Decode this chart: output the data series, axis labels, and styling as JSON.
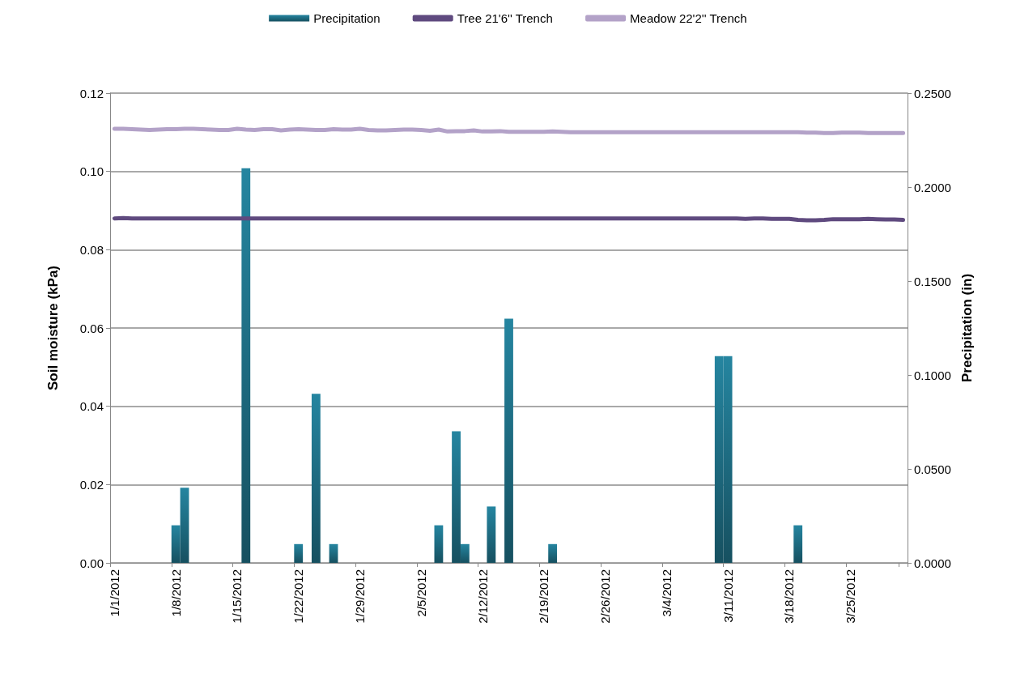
{
  "chart_data": {
    "type": "bar",
    "ylabel": "Soil moisture (kPa)",
    "y2label": "Precipitation (in)",
    "categories": [
      "1/1/2012",
      null,
      null,
      null,
      null,
      null,
      null,
      "1/8/2012",
      null,
      null,
      null,
      null,
      null,
      null,
      "1/15/2012",
      null,
      null,
      null,
      null,
      null,
      null,
      "1/22/2012",
      null,
      null,
      null,
      null,
      null,
      null,
      "1/29/2012",
      null,
      null,
      null,
      null,
      null,
      null,
      "2/5/2012",
      null,
      null,
      null,
      null,
      null,
      null,
      "2/12/2012",
      null,
      null,
      null,
      null,
      null,
      null,
      "2/19/2012",
      null,
      null,
      null,
      null,
      null,
      null,
      "2/26/2012",
      null,
      null,
      null,
      null,
      null,
      null,
      "3/4/2012",
      null,
      null,
      null,
      null,
      null,
      null,
      "3/11/2012",
      null,
      null,
      null,
      null,
      null,
      null,
      "3/18/2012",
      null,
      null,
      null,
      null,
      null,
      null,
      "3/25/2012",
      null,
      null,
      null,
      null,
      null,
      null
    ],
    "series": [
      {
        "name": "Precipitation",
        "axis": "y2",
        "color": "#2585a0",
        "values": [
          0,
          0,
          0,
          0,
          0,
          0,
          0,
          0.02,
          0.04,
          0,
          0,
          0,
          0,
          0,
          0,
          0.21,
          0,
          0,
          0,
          0,
          0,
          0.01,
          0,
          0.09,
          0,
          0.01,
          0,
          0,
          0,
          0,
          0,
          0,
          0,
          0,
          0,
          0,
          0,
          0.02,
          0,
          0.07,
          0.01,
          0,
          0,
          0.03,
          0,
          0.13,
          0,
          0,
          0,
          0,
          0.01,
          0,
          0,
          0,
          0,
          0,
          0,
          0,
          0,
          0,
          0,
          0,
          0,
          0,
          0,
          0,
          0,
          0,
          0,
          0.11,
          0.11,
          0,
          0,
          0,
          0,
          0,
          0,
          0,
          0.02,
          0,
          0,
          0,
          0,
          0,
          0,
          0,
          0,
          0,
          0,
          0,
          0
        ]
      },
      {
        "name": "Tree 21'6'' Trench",
        "type": "line",
        "color": "#5f4a7f",
        "values": [
          0.088,
          0.0881,
          0.088,
          0.088,
          0.088,
          0.088,
          0.088,
          0.088,
          0.088,
          0.088,
          0.088,
          0.088,
          0.088,
          0.088,
          0.088,
          0.088,
          0.088,
          0.088,
          0.088,
          0.088,
          0.088,
          0.088,
          0.088,
          0.088,
          0.088,
          0.088,
          0.088,
          0.088,
          0.088,
          0.088,
          0.088,
          0.088,
          0.088,
          0.088,
          0.088,
          0.088,
          0.088,
          0.088,
          0.088,
          0.088,
          0.088,
          0.088,
          0.088,
          0.088,
          0.088,
          0.088,
          0.088,
          0.088,
          0.088,
          0.088,
          0.088,
          0.088,
          0.088,
          0.088,
          0.088,
          0.088,
          0.088,
          0.088,
          0.088,
          0.088,
          0.088,
          0.088,
          0.088,
          0.088,
          0.088,
          0.088,
          0.088,
          0.088,
          0.088,
          0.088,
          0.088,
          0.088,
          0.0879,
          0.088,
          0.088,
          0.0879,
          0.0879,
          0.0879,
          0.0876,
          0.0875,
          0.0875,
          0.0876,
          0.0878,
          0.0878,
          0.0878,
          0.0878,
          0.0879,
          0.0878,
          0.0877,
          0.0877,
          0.0876
        ]
      },
      {
        "name": "Meadow 22'2'' Trench",
        "type": "line",
        "color": "#b3a2c8",
        "values": [
          0.1109,
          0.1109,
          0.1108,
          0.1107,
          0.1106,
          0.1107,
          0.1108,
          0.1108,
          0.1109,
          0.1109,
          0.1108,
          0.1107,
          0.1106,
          0.1106,
          0.1109,
          0.1107,
          0.1106,
          0.1108,
          0.1108,
          0.1105,
          0.1107,
          0.1108,
          0.1107,
          0.1106,
          0.1106,
          0.1108,
          0.1107,
          0.1107,
          0.1109,
          0.1106,
          0.1105,
          0.1105,
          0.1106,
          0.1107,
          0.1107,
          0.1106,
          0.1104,
          0.1107,
          0.1102,
          0.1103,
          0.1103,
          0.1105,
          0.1102,
          0.1102,
          0.1103,
          0.1101,
          0.1101,
          0.1101,
          0.1101,
          0.1101,
          0.1102,
          0.1101,
          0.11,
          0.11,
          0.11,
          0.11,
          0.11,
          0.11,
          0.11,
          0.11,
          0.11,
          0.11,
          0.11,
          0.11,
          0.11,
          0.11,
          0.11,
          0.11,
          0.11,
          0.11,
          0.11,
          0.11,
          0.11,
          0.11,
          0.11,
          0.11,
          0.11,
          0.11,
          0.11,
          0.1099,
          0.1099,
          0.1098,
          0.1098,
          0.1099,
          0.1099,
          0.1099,
          0.1098,
          0.1098,
          0.1098,
          0.1098,
          0.1098
        ]
      }
    ],
    "ylim": [
      0,
      0.12
    ],
    "yticks": [
      {
        "value": 0,
        "label": "0.00"
      },
      {
        "value": 0.02,
        "label": "0.02"
      },
      {
        "value": 0.04,
        "label": "0.04"
      },
      {
        "value": 0.06,
        "label": "0.06"
      },
      {
        "value": 0.08,
        "label": "0.08"
      },
      {
        "value": 0.1,
        "label": "0.10"
      },
      {
        "value": 0.12,
        "label": "0.12"
      }
    ],
    "y2lim": [
      0,
      0.25
    ],
    "y2ticks": [
      {
        "value": 0,
        "label": "0.0000"
      },
      {
        "value": 0.05,
        "label": "0.0500"
      },
      {
        "value": 0.1,
        "label": "0.1000"
      },
      {
        "value": 0.15,
        "label": "0.1500"
      },
      {
        "value": 0.2,
        "label": "0.2000"
      },
      {
        "value": 0.25,
        "label": "0.2500"
      }
    ],
    "grid": "y",
    "legend": "top",
    "marker": "none",
    "line_style": "solid"
  }
}
